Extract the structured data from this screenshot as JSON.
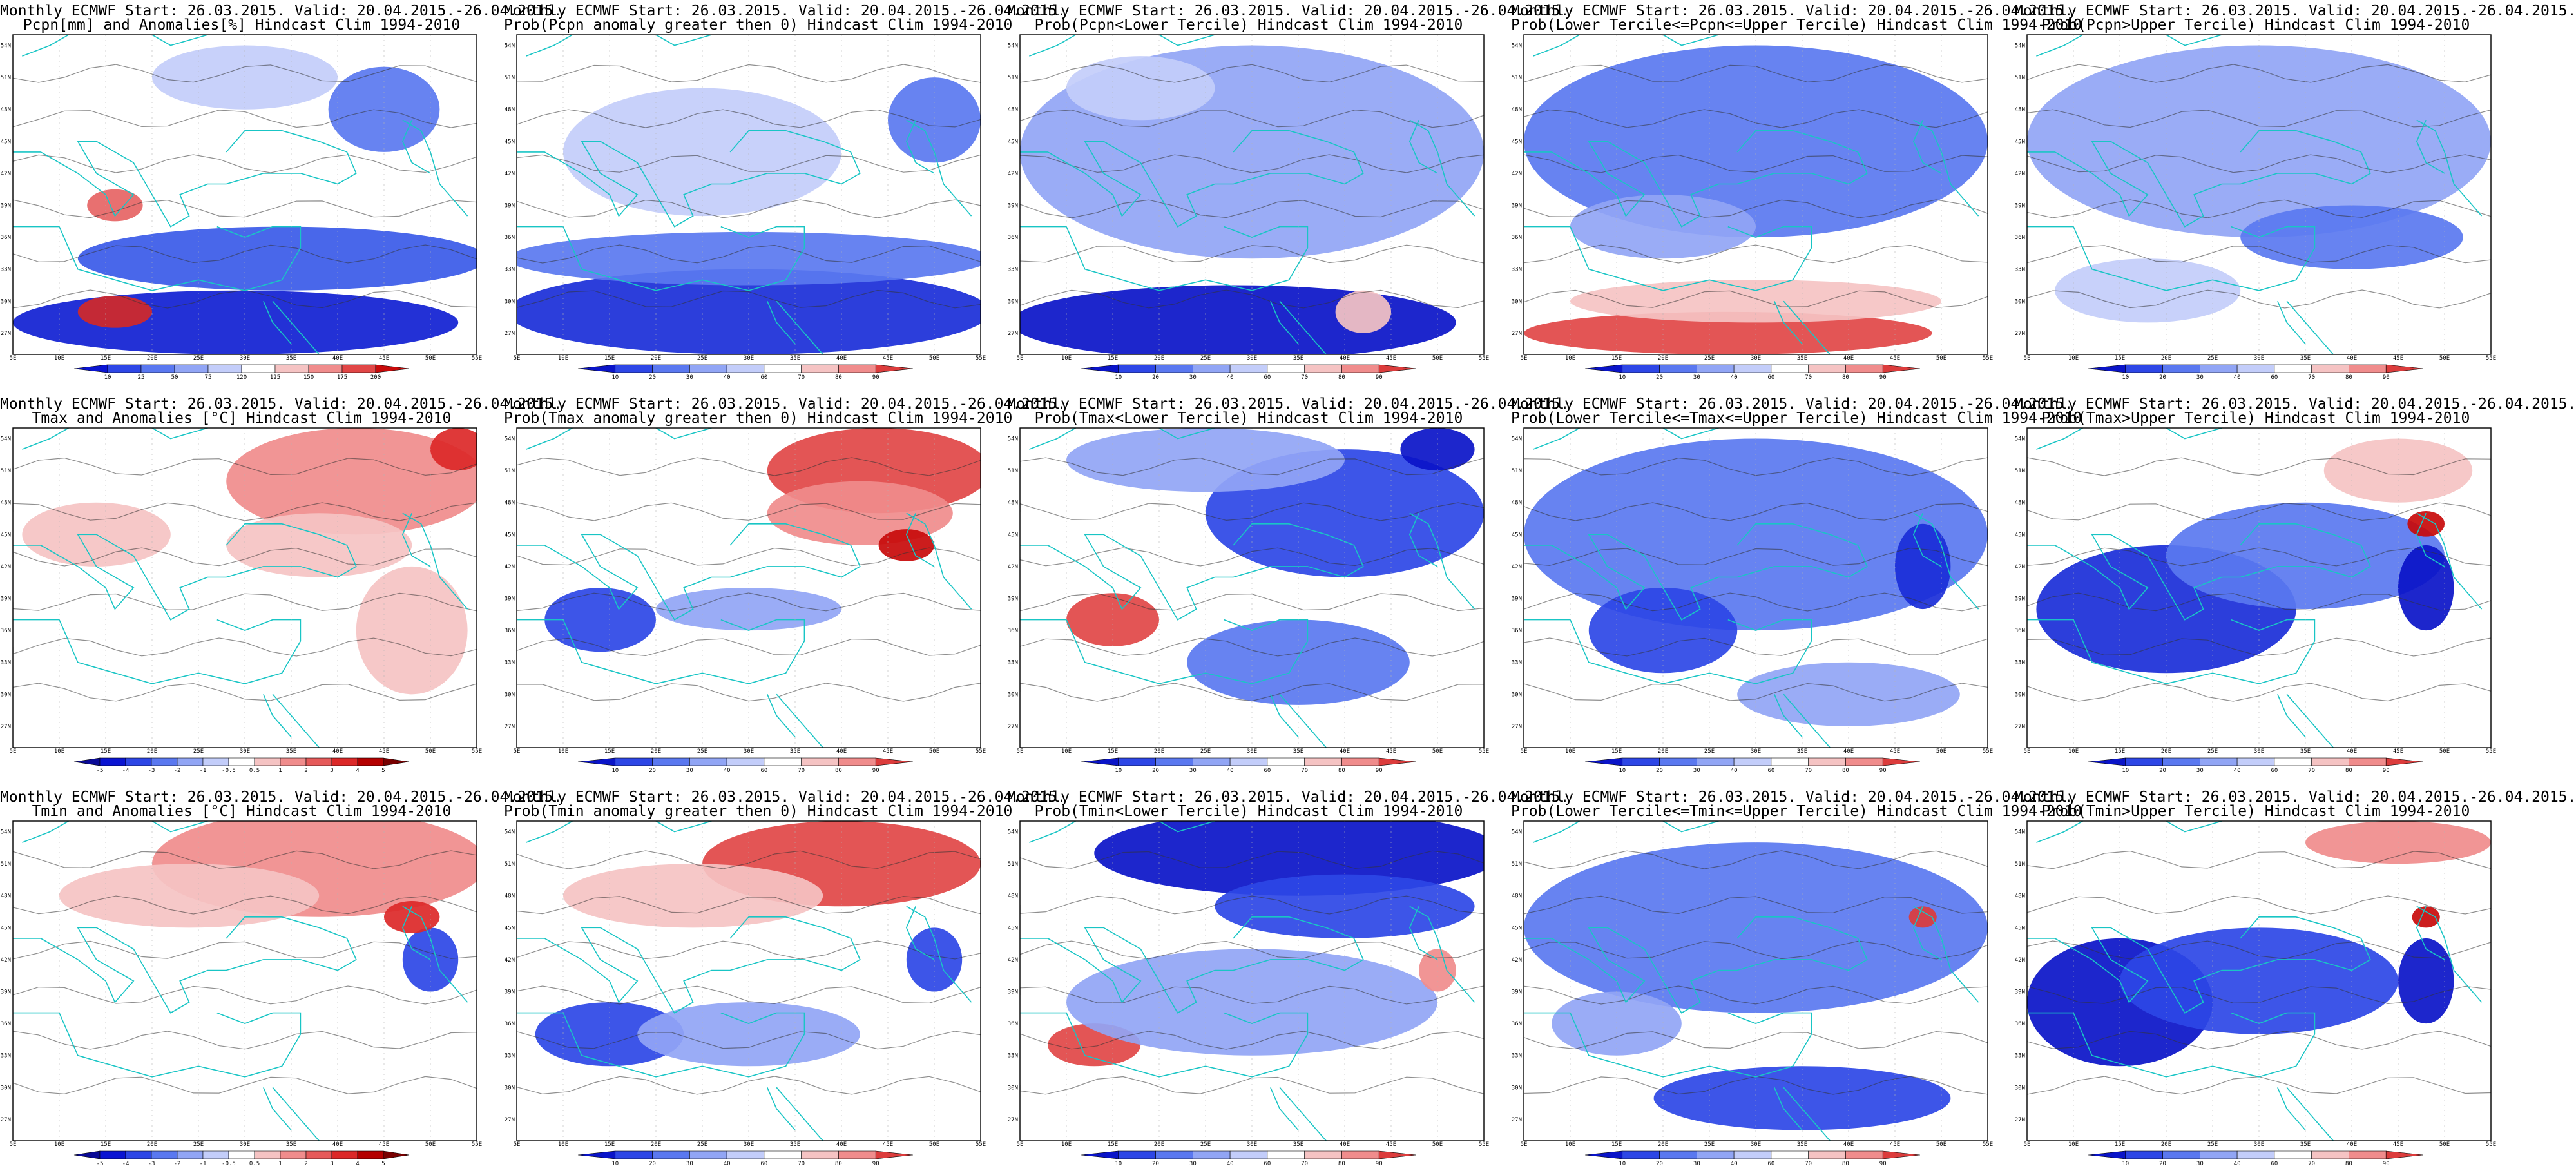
{
  "map_extent": {
    "lon": [
      5,
      55
    ],
    "lat": [
      25,
      55
    ]
  },
  "lon_ticks": [
    "5E",
    "10E",
    "15E",
    "20E",
    "25E",
    "30E",
    "35E",
    "40E",
    "45E",
    "50E",
    "55E"
  ],
  "lat_ticks": [
    "54N",
    "51N",
    "48N",
    "45N",
    "42N",
    "39N",
    "36N",
    "33N",
    "30N",
    "27N"
  ],
  "colors": {
    "background": "#ffffff",
    "frame": "#000000",
    "coast": "#19c5c5",
    "contour": "#333333",
    "grid": "#b4b4b4"
  },
  "colorbar_scales": {
    "pcpn_anom": {
      "labels": [
        "10",
        "25",
        "50",
        "75",
        "120",
        "125",
        "150",
        "175",
        "200"
      ],
      "colors": [
        "#0a14d2",
        "#2d46e6",
        "#5a78f0",
        "#91a5f5",
        "#c3cdfa",
        "#ffffff",
        "#f5c3c3",
        "#f08c8c",
        "#e14646",
        "#c80a0a"
      ]
    },
    "prob": {
      "labels": [
        "10",
        "20",
        "30",
        "40",
        "60",
        "70",
        "80",
        "90"
      ],
      "colors": [
        "#0a14c8",
        "#2d46e6",
        "#5a78f0",
        "#91a5f5",
        "#c3cdfa",
        "#ffffff",
        "#f5c3c3",
        "#f08c8c",
        "#dc3c3c"
      ]
    },
    "temp_anom": {
      "labels": [
        "-5",
        "-4",
        "-3",
        "-2",
        "-1",
        "-0.5",
        "0.5",
        "1",
        "2",
        "3",
        "4",
        "5"
      ],
      "colors": [
        "#0a0a96",
        "#0a14d2",
        "#2d46e6",
        "#5a78f0",
        "#91a5f5",
        "#c3cdfa",
        "#ffffff",
        "#f5c3c3",
        "#f08c8c",
        "#e65a5a",
        "#dc2828",
        "#b40000",
        "#780000"
      ]
    }
  },
  "panels": [
    {
      "t1": "Monthly ECMWF Start: 26.03.2015. Valid: 20.04.2015.-26.04.2015.",
      "t2": "Pcpn[mm] and Anomalies[%] Hindcast Clim 1994-2010",
      "scale": "pcpn_anom",
      "blobs": [
        {
          "lon": 29,
          "lat": 28,
          "rx": 24,
          "ry": 3,
          "c": "#1020d2"
        },
        {
          "lon": 34,
          "lat": 34,
          "rx": 22,
          "ry": 3,
          "c": "#3a5ae8"
        },
        {
          "lon": 45,
          "lat": 48,
          "rx": 6,
          "ry": 4,
          "c": "#5a78f0"
        },
        {
          "lon": 16,
          "lat": 29,
          "rx": 4,
          "ry": 1.5,
          "c": "#d22828"
        },
        {
          "lon": 16,
          "lat": 39,
          "rx": 3,
          "ry": 1.5,
          "c": "#e66464"
        },
        {
          "lon": 30,
          "lat": 51,
          "rx": 10,
          "ry": 3,
          "c": "#c3cdfa"
        }
      ]
    },
    {
      "t1": "Monthly ECMWF Start: 26.03.2015. Valid: 20.04.2015.-26.04.2015.",
      "t2": "Prob(Pcpn anomaly greater then 0) Hindcast Clim 1994-2010",
      "scale": "prob",
      "blobs": [
        {
          "lon": 30,
          "lat": 29,
          "rx": 26,
          "ry": 4,
          "c": "#1a2ed8"
        },
        {
          "lon": 30,
          "lat": 34,
          "rx": 26,
          "ry": 2.5,
          "c": "#5a78f0"
        },
        {
          "lon": 50,
          "lat": 47,
          "rx": 5,
          "ry": 4,
          "c": "#5a78f0"
        },
        {
          "lon": 25,
          "lat": 44,
          "rx": 15,
          "ry": 6,
          "c": "#c3cdfa"
        }
      ]
    },
    {
      "t1": "Monthly ECMWF Start: 26.03.2015. Valid: 20.04.2015.-26.04.2015.",
      "t2": "Prob(Pcpn<Lower Tercile) Hindcast Clim 1994-2010",
      "scale": "prob",
      "blobs": [
        {
          "lon": 28,
          "lat": 28,
          "rx": 24,
          "ry": 3.5,
          "c": "#0a14c8"
        },
        {
          "lon": 30,
          "lat": 44,
          "rx": 25,
          "ry": 10,
          "c": "#91a5f5"
        },
        {
          "lon": 42,
          "lat": 29,
          "rx": 3,
          "ry": 2,
          "c": "#f5c3c3"
        },
        {
          "lon": 18,
          "lat": 50,
          "rx": 8,
          "ry": 3,
          "c": "#c3cdfa"
        }
      ]
    },
    {
      "t1": "Monthly ECMWF Start: 26.03.2015. Valid: 20.04.2015.-26.04.2015.",
      "t2": "Prob(Lower Tercile<=Pcpn<=Upper Tercile) Hindcast Clim 1994-2010",
      "scale": "prob",
      "blobs": [
        {
          "lon": 27,
          "lat": 27,
          "rx": 22,
          "ry": 2,
          "c": "#e14646"
        },
        {
          "lon": 30,
          "lat": 30,
          "rx": 20,
          "ry": 2,
          "c": "#f5c3c3"
        },
        {
          "lon": 30,
          "lat": 45,
          "rx": 25,
          "ry": 9,
          "c": "#5a78f0"
        },
        {
          "lon": 20,
          "lat": 37,
          "rx": 10,
          "ry": 3,
          "c": "#91a5f5"
        }
      ]
    },
    {
      "t1": "Monthly ECMWF Start: 26.03.2015. Valid: 20.04.2015.-26.04.2015.",
      "t2": "Prob(Pcpn>Upper Tercile) Hindcast Clim 1994-2010",
      "scale": "prob",
      "blobs": [
        {
          "lon": 30,
          "lat": 45,
          "rx": 25,
          "ry": 9,
          "c": "#91a5f5"
        },
        {
          "lon": 40,
          "lat": 36,
          "rx": 12,
          "ry": 3,
          "c": "#5a78f0"
        },
        {
          "lon": 18,
          "lat": 31,
          "rx": 10,
          "ry": 3,
          "c": "#c3cdfa"
        }
      ]
    },
    {
      "t1": "Monthly ECMWF Start: 26.03.2015. Valid: 20.04.2015.-26.04.2015.",
      "t2": "Tmax and Anomalies [°C] Hindcast Clim 1994-2010",
      "scale": "temp_anom",
      "blobs": [
        {
          "lon": 42,
          "lat": 50,
          "rx": 14,
          "ry": 5,
          "c": "#f08c8c"
        },
        {
          "lon": 38,
          "lat": 44,
          "rx": 10,
          "ry": 3,
          "c": "#f5c3c3"
        },
        {
          "lon": 14,
          "lat": 45,
          "rx": 8,
          "ry": 3,
          "c": "#f5c3c3"
        },
        {
          "lon": 48,
          "lat": 36,
          "rx": 6,
          "ry": 6,
          "c": "#f5c3c3"
        },
        {
          "lon": 53,
          "lat": 53,
          "rx": 3,
          "ry": 2,
          "c": "#dc2828"
        }
      ]
    },
    {
      "t1": "Monthly ECMWF Start: 26.03.2015. Valid: 20.04.2015.-26.04.2015.",
      "t2": "Prob(Tmax anomaly greater then 0) Hindcast Clim 1994-2010",
      "scale": "prob",
      "blobs": [
        {
          "lon": 44,
          "lat": 51,
          "rx": 12,
          "ry": 4,
          "c": "#e14646"
        },
        {
          "lon": 42,
          "lat": 47,
          "rx": 10,
          "ry": 3,
          "c": "#f08c8c"
        },
        {
          "lon": 14,
          "lat": 37,
          "rx": 6,
          "ry": 3,
          "c": "#2d46e6"
        },
        {
          "lon": 30,
          "lat": 38,
          "rx": 10,
          "ry": 2,
          "c": "#91a5f5"
        },
        {
          "lon": 47,
          "lat": 44,
          "rx": 3,
          "ry": 1.5,
          "c": "#c80a0a"
        }
      ]
    },
    {
      "t1": "Monthly ECMWF Start: 26.03.2015. Valid: 20.04.2015.-26.04.2015.",
      "t2": "Prob(Tmax<Lower Tercile) Hindcast Clim 1994-2010",
      "scale": "prob",
      "blobs": [
        {
          "lon": 40,
          "lat": 47,
          "rx": 15,
          "ry": 6,
          "c": "#2d46e6"
        },
        {
          "lon": 15,
          "lat": 37,
          "rx": 5,
          "ry": 2.5,
          "c": "#e14646"
        },
        {
          "lon": 35,
          "lat": 33,
          "rx": 12,
          "ry": 4,
          "c": "#5a78f0"
        },
        {
          "lon": 25,
          "lat": 52,
          "rx": 15,
          "ry": 3,
          "c": "#91a5f5"
        },
        {
          "lon": 50,
          "lat": 53,
          "rx": 4,
          "ry": 2,
          "c": "#0a14c8"
        }
      ]
    },
    {
      "t1": "Monthly ECMWF Start: 26.03.2015. Valid: 20.04.2015.-26.04.2015.",
      "t2": "Prob(Lower Tercile<=Tmax<=Upper Tercile) Hindcast Clim 1994-2010",
      "scale": "prob",
      "blobs": [
        {
          "lon": 30,
          "lat": 45,
          "rx": 25,
          "ry": 9,
          "c": "#5a78f0"
        },
        {
          "lon": 20,
          "lat": 36,
          "rx": 8,
          "ry": 4,
          "c": "#2d46e6"
        },
        {
          "lon": 40,
          "lat": 30,
          "rx": 12,
          "ry": 3,
          "c": "#91a5f5"
        },
        {
          "lon": 48,
          "lat": 42,
          "rx": 3,
          "ry": 4,
          "c": "#1a2ed8"
        }
      ]
    },
    {
      "t1": "Monthly ECMWF Start: 26.03.2015. Valid: 20.04.2015.-26.04.2015.",
      "t2": "Prob(Tmax>Upper Tercile) Hindcast Clim 1994-2010",
      "scale": "prob",
      "blobs": [
        {
          "lon": 20,
          "lat": 38,
          "rx": 14,
          "ry": 6,
          "c": "#1a2ed8"
        },
        {
          "lon": 35,
          "lat": 43,
          "rx": 15,
          "ry": 5,
          "c": "#5a78f0"
        },
        {
          "lon": 48,
          "lat": 40,
          "rx": 3,
          "ry": 4,
          "c": "#0a14c8"
        },
        {
          "lon": 48,
          "lat": 46,
          "rx": 2,
          "ry": 1.2,
          "c": "#c80a0a"
        },
        {
          "lon": 45,
          "lat": 51,
          "rx": 8,
          "ry": 3,
          "c": "#f5c3c3"
        }
      ]
    },
    {
      "t1": "Monthly ECMWF Start: 26.03.2015. Valid: 20.04.2015.-26.04.2015.",
      "t2": "Tmin and Anomalies [°C] Hindcast Clim 1994-2010",
      "scale": "temp_anom",
      "blobs": [
        {
          "lon": 38,
          "lat": 51,
          "rx": 18,
          "ry": 5,
          "c": "#f08c8c"
        },
        {
          "lon": 24,
          "lat": 48,
          "rx": 14,
          "ry": 3,
          "c": "#f5c3c3"
        },
        {
          "lon": 50,
          "lat": 42,
          "rx": 3,
          "ry": 3,
          "c": "#2d46e6"
        },
        {
          "lon": 48,
          "lat": 46,
          "rx": 3,
          "ry": 1.5,
          "c": "#dc2828"
        }
      ]
    },
    {
      "t1": "Monthly ECMWF Start: 26.03.2015. Valid: 20.04.2015.-26.04.2015.",
      "t2": "Prob(Tmin anomaly greater then 0) Hindcast Clim 1994-2010",
      "scale": "prob",
      "blobs": [
        {
          "lon": 40,
          "lat": 51,
          "rx": 15,
          "ry": 4,
          "c": "#e14646"
        },
        {
          "lon": 24,
          "lat": 48,
          "rx": 14,
          "ry": 3,
          "c": "#f5c3c3"
        },
        {
          "lon": 15,
          "lat": 35,
          "rx": 8,
          "ry": 3,
          "c": "#2d46e6"
        },
        {
          "lon": 30,
          "lat": 35,
          "rx": 12,
          "ry": 3,
          "c": "#91a5f5"
        },
        {
          "lon": 50,
          "lat": 42,
          "rx": 3,
          "ry": 3,
          "c": "#2d46e6"
        }
      ]
    },
    {
      "t1": "Monthly ECMWF Start: 26.03.2015. Valid: 20.04.2015.-26.04.2015.",
      "t2": "Prob(Tmin<Lower Tercile) Hindcast Clim 1994-2010",
      "scale": "prob",
      "blobs": [
        {
          "lon": 35,
          "lat": 52,
          "rx": 22,
          "ry": 4,
          "c": "#0a14c8"
        },
        {
          "lon": 40,
          "lat": 47,
          "rx": 14,
          "ry": 3,
          "c": "#2d46e6"
        },
        {
          "lon": 13,
          "lat": 34,
          "rx": 5,
          "ry": 2,
          "c": "#e14646"
        },
        {
          "lon": 30,
          "lat": 38,
          "rx": 20,
          "ry": 5,
          "c": "#91a5f5"
        },
        {
          "lon": 50,
          "lat": 41,
          "rx": 2,
          "ry": 2,
          "c": "#f08c8c"
        }
      ]
    },
    {
      "t1": "Monthly ECMWF Start: 26.03.2015. Valid: 20.04.2015.-26.04.2015.",
      "t2": "Prob(Lower Tercile<=Tmin<=Upper Tercile) Hindcast Clim 1994-2010",
      "scale": "prob",
      "blobs": [
        {
          "lon": 30,
          "lat": 45,
          "rx": 25,
          "ry": 8,
          "c": "#5a78f0"
        },
        {
          "lon": 35,
          "lat": 29,
          "rx": 16,
          "ry": 3,
          "c": "#2d46e6"
        },
        {
          "lon": 15,
          "lat": 36,
          "rx": 7,
          "ry": 3,
          "c": "#91a5f5"
        },
        {
          "lon": 48,
          "lat": 46,
          "rx": 1.5,
          "ry": 1,
          "c": "#dc3c3c"
        }
      ]
    },
    {
      "t1": "Monthly ECMWF Start: 26.03.2015. Valid: 20.04.2015.-26.04.2015.",
      "t2": "Prob(Tmin>Upper Tercile) Hindcast Clim 1994-2010",
      "scale": "prob",
      "blobs": [
        {
          "lon": 15,
          "lat": 38,
          "rx": 10,
          "ry": 6,
          "c": "#0a14c8"
        },
        {
          "lon": 30,
          "lat": 40,
          "rx": 15,
          "ry": 5,
          "c": "#2d46e6"
        },
        {
          "lon": 48,
          "lat": 40,
          "rx": 3,
          "ry": 4,
          "c": "#0a14c8"
        },
        {
          "lon": 45,
          "lat": 53,
          "rx": 10,
          "ry": 2,
          "c": "#f08c8c"
        },
        {
          "lon": 48,
          "lat": 46,
          "rx": 1.5,
          "ry": 1,
          "c": "#c80a0a"
        }
      ]
    }
  ]
}
